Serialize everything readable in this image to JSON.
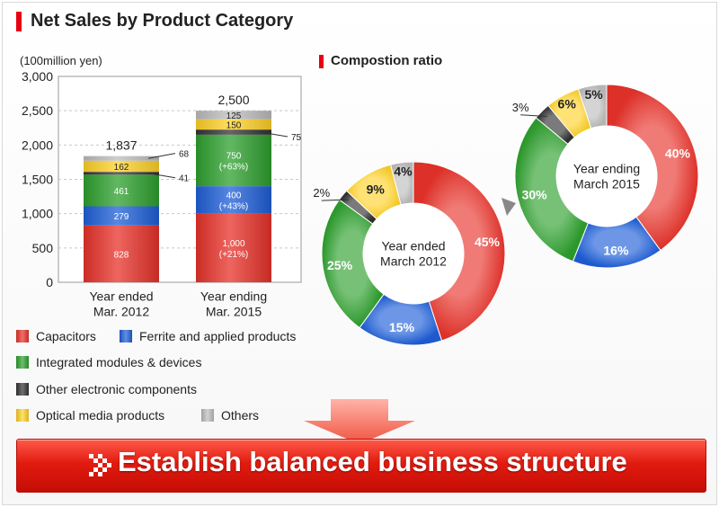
{
  "title": "Net Sales by Product Category",
  "subtitle": "Compostion ratio",
  "banner": "Establish balanced business structure",
  "colors": {
    "capacitors": "#e8322a",
    "ferrite": "#1f5fd8",
    "modules": "#2ea02e",
    "other_electronic": "#333333",
    "optical": "#ffd22a",
    "others": "#bdbdbd",
    "accent": "#e60012"
  },
  "legend": [
    {
      "key": "capacitors",
      "label": "Capacitors"
    },
    {
      "key": "ferrite",
      "label": "Ferrite and applied products"
    },
    {
      "key": "modules",
      "label": "Integrated modules & devices"
    },
    {
      "key": "other_electronic",
      "label": "Other electronic components"
    },
    {
      "key": "optical",
      "label": "Optical media products"
    },
    {
      "key": "others",
      "label": "Others"
    }
  ],
  "chart_data": [
    {
      "type": "bar",
      "stacked": true,
      "ylabel": "(100million yen)",
      "ylim": [
        0,
        3000
      ],
      "yticks": [
        "0",
        "500",
        "1,000",
        "1,500",
        "2,000",
        "2,500",
        "3,000"
      ],
      "grid": true,
      "categories": [
        "Year ended\nMar. 2012",
        "Year ending\nMar. 2015"
      ],
      "totals": [
        "1,837",
        "2,500"
      ],
      "series": [
        {
          "name": "Capacitors",
          "key": "capacitors",
          "values": [
            828,
            1000
          ],
          "labels": [
            "828",
            "1,000\n(+21%)"
          ]
        },
        {
          "name": "Ferrite and applied products",
          "key": "ferrite",
          "values": [
            279,
            400
          ],
          "labels": [
            "279",
            "400\n(+43%)"
          ]
        },
        {
          "name": "Integrated modules & devices",
          "key": "modules",
          "values": [
            461,
            750
          ],
          "labels": [
            "461",
            "750\n(+63%)"
          ]
        },
        {
          "name": "Other electronic components",
          "key": "other_electronic",
          "values": [
            41,
            75
          ],
          "labels": [
            "41",
            "75"
          ]
        },
        {
          "name": "Optical media products",
          "key": "optical",
          "values": [
            162,
            150
          ],
          "labels": [
            "162",
            "150"
          ]
        },
        {
          "name": "Others",
          "key": "others",
          "values": [
            68,
            125
          ],
          "labels": [
            "68",
            "125"
          ]
        }
      ]
    },
    {
      "type": "pie",
      "donut": true,
      "title": "Year ended\nMarch 2012",
      "slices": [
        {
          "key": "capacitors",
          "value": 45,
          "label": "45%"
        },
        {
          "key": "ferrite",
          "value": 15,
          "label": "15%"
        },
        {
          "key": "modules",
          "value": 25,
          "label": "25%"
        },
        {
          "key": "other_electronic",
          "value": 2,
          "label": "2%"
        },
        {
          "key": "optical",
          "value": 9,
          "label": "9%"
        },
        {
          "key": "others",
          "value": 4,
          "label": "4%"
        }
      ]
    },
    {
      "type": "pie",
      "donut": true,
      "title": "Year ending\nMarch 2015",
      "slices": [
        {
          "key": "capacitors",
          "value": 40,
          "label": "40%"
        },
        {
          "key": "ferrite",
          "value": 16,
          "label": "16%"
        },
        {
          "key": "modules",
          "value": 30,
          "label": "30%"
        },
        {
          "key": "other_electronic",
          "value": 3,
          "label": "3%"
        },
        {
          "key": "optical",
          "value": 6,
          "label": "6%"
        },
        {
          "key": "others",
          "value": 5,
          "label": "5%"
        }
      ]
    }
  ]
}
